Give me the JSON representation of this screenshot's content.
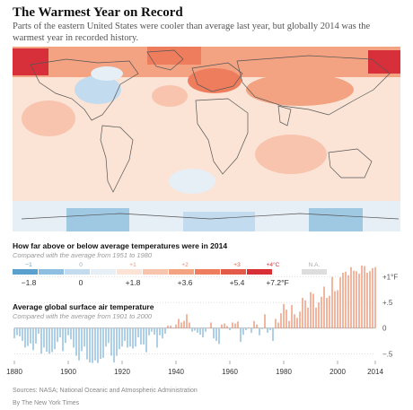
{
  "header": {
    "title": "The Warmest Year on Record",
    "subtitle": "Parts of the eastern United States were cooler than average last year, but globally 2014 was the warmest year in recorded history."
  },
  "map": {
    "colors": {
      "hot": "#d7303a",
      "warm": "#f08a6a",
      "mild": "#f8c2a8",
      "pale": "#fbe4d6",
      "cool": "#cfe4f1",
      "cold": "#9fc8e3"
    }
  },
  "legend_section": {
    "heading": "How far above or below average temperatures were in 2014",
    "subheading": "Compared with the average from 1951 to 1980",
    "celsius_labels": [
      "−1",
      "0",
      "+1",
      "+2",
      "+3",
      "+4°C",
      "N.A."
    ],
    "fahrenheit_labels": [
      "−1.8",
      "0",
      "+1.8",
      "+3.6",
      "+5.4",
      "+7.2°F"
    ],
    "swatches": [
      "#5aa0cf",
      "#8fbfe0",
      "#c3dbee",
      "#e6eef6",
      "#fbe3d6",
      "#f8c4ad",
      "#f3a282",
      "#ee7d5e",
      "#e35a48",
      "#d72f35",
      "#dddddd"
    ]
  },
  "chart_data": {
    "type": "bar",
    "title": "Average global surface air temperature",
    "subtitle": "Compared with the average from 1901 to 2000",
    "x_start": 1880,
    "x_end": 2014,
    "ylim": [
      -0.6,
      1.15
    ],
    "y_ticks": [
      "+1°F",
      "+.5",
      "0",
      "−.5"
    ],
    "y_tick_values": [
      1,
      0.5,
      0,
      -0.5
    ],
    "x_ticks": [
      "1880",
      "1900",
      "1920",
      "1940",
      "1960",
      "1980",
      "2000",
      "2014"
    ],
    "x_tick_values": [
      1880,
      1900,
      1920,
      1940,
      1960,
      1980,
      2000,
      2014
    ],
    "values": [
      -0.2,
      -0.14,
      -0.16,
      -0.25,
      -0.38,
      -0.35,
      -0.3,
      -0.43,
      -0.3,
      -0.11,
      -0.5,
      -0.38,
      -0.46,
      -0.5,
      -0.47,
      -0.41,
      -0.27,
      -0.18,
      -0.45,
      -0.29,
      -0.14,
      -0.22,
      -0.38,
      -0.54,
      -0.63,
      -0.45,
      -0.36,
      -0.61,
      -0.67,
      -0.68,
      -0.63,
      -0.68,
      -0.6,
      -0.58,
      -0.36,
      -0.29,
      -0.54,
      -0.67,
      -0.54,
      -0.41,
      -0.36,
      -0.25,
      -0.38,
      -0.36,
      -0.4,
      -0.36,
      -0.18,
      -0.32,
      -0.32,
      -0.47,
      -0.14,
      -0.07,
      -0.13,
      -0.38,
      -0.14,
      -0.2,
      -0.11,
      0.05,
      0.05,
      0.01,
      0.07,
      0.18,
      0.11,
      0.14,
      0.27,
      0.11,
      -0.07,
      -0.05,
      -0.09,
      -0.13,
      -0.18,
      -0.07,
      0.0,
      0.11,
      -0.2,
      -0.25,
      -0.31,
      0.07,
      0.09,
      0.04,
      -0.04,
      0.11,
      0.09,
      0.13,
      -0.27,
      -0.13,
      -0.04,
      0.01,
      -0.09,
      0.14,
      0.07,
      -0.14,
      -0.02,
      0.27,
      -0.09,
      -0.04,
      -0.25,
      0.18,
      0.11,
      0.29,
      0.47,
      0.36,
      0.14,
      0.45,
      0.27,
      0.2,
      0.32,
      0.59,
      0.54,
      0.4,
      0.7,
      0.67,
      0.4,
      0.5,
      0.61,
      0.81,
      0.59,
      0.63,
      1.0,
      0.72,
      0.74,
      0.99,
      1.08,
      1.1,
      1.03,
      1.19,
      1.12,
      1.11,
      1.06,
      1.22,
      1.21,
      1.08,
      1.11,
      1.17,
      1.19
    ],
    "positive_color": "#f0a68c",
    "negative_color": "#9cc6e2"
  },
  "footer": {
    "source": "Sources: NASA; National Oceanic and Atmospheric Administration",
    "credit": "By The New York Times"
  }
}
